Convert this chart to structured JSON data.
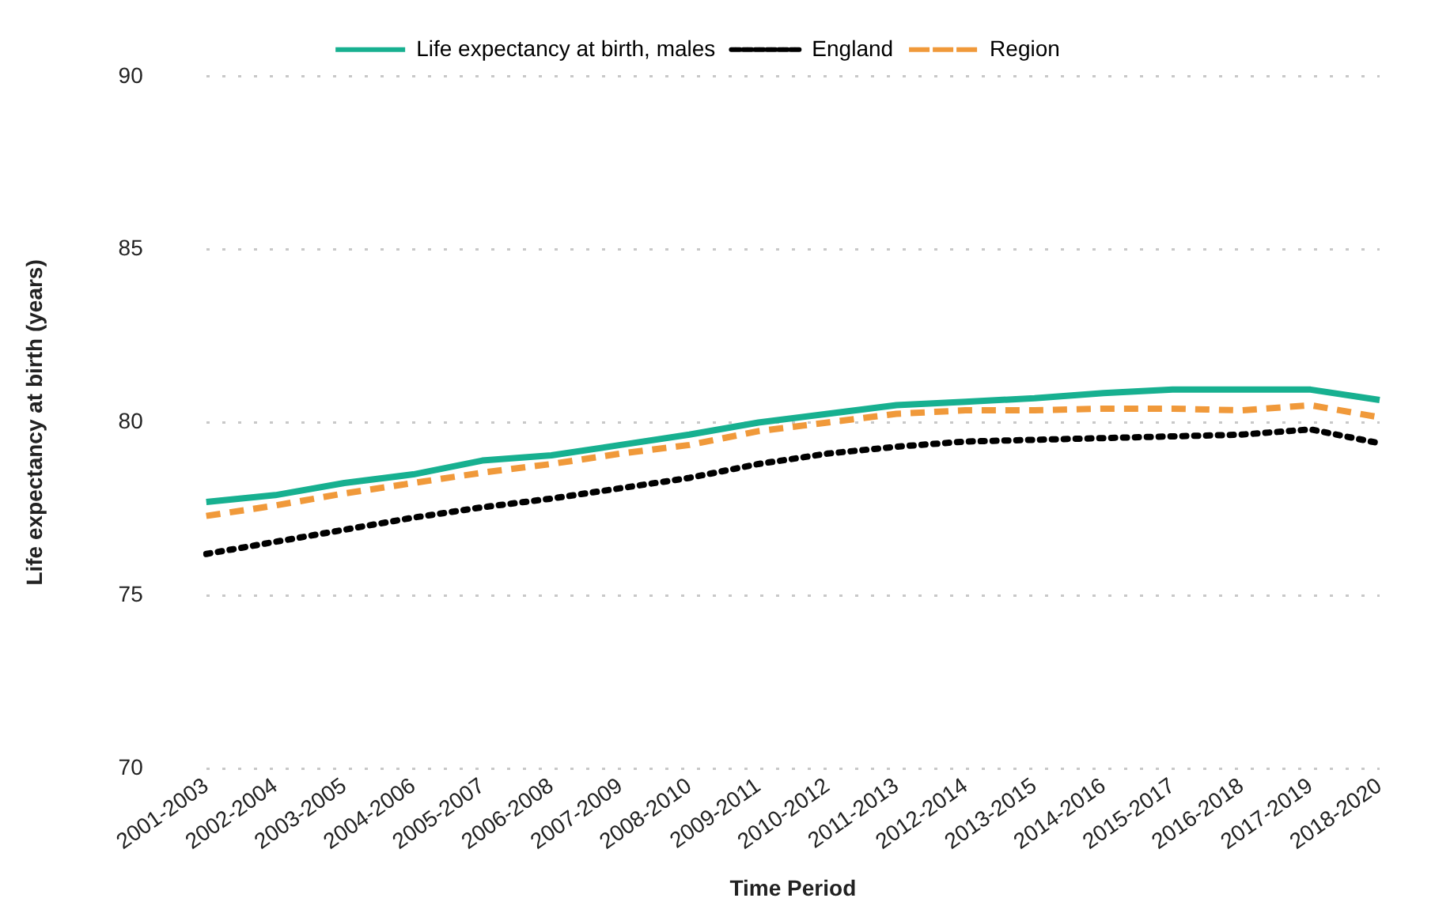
{
  "chart_data": {
    "type": "line",
    "xlabel": "Time Period",
    "ylabel": "Life expectancy at birth (years)",
    "categories": [
      "2001-2003",
      "2002-2004",
      "2003-2005",
      "2004-2006",
      "2005-2007",
      "2006-2008",
      "2007-2009",
      "2008-2010",
      "2009-2011",
      "2010-2012",
      "2011-2013",
      "2012-2014",
      "2013-2015",
      "2014-2016",
      "2015-2017",
      "2016-2018",
      "2017-2019",
      "2018-2020"
    ],
    "series": [
      {
        "name": "Life expectancy at birth, males",
        "color": "#17b090",
        "line_style": "solid",
        "values": [
          77.7,
          77.9,
          78.25,
          78.5,
          78.9,
          79.05,
          79.35,
          79.65,
          80.0,
          80.25,
          80.5,
          80.6,
          80.7,
          80.85,
          80.95,
          80.95,
          80.95,
          80.65
        ]
      },
      {
        "name": "England",
        "color": "#000000",
        "line_style": "dotted",
        "values": [
          76.2,
          76.55,
          76.9,
          77.25,
          77.55,
          77.8,
          78.1,
          78.4,
          78.8,
          79.1,
          79.3,
          79.45,
          79.5,
          79.55,
          79.6,
          79.65,
          79.8,
          79.4
        ]
      },
      {
        "name": "Region",
        "color": "#f0993a",
        "line_style": "dashed",
        "values": [
          77.3,
          77.6,
          77.95,
          78.25,
          78.55,
          78.8,
          79.1,
          79.35,
          79.75,
          80.0,
          80.25,
          80.35,
          80.35,
          80.4,
          80.4,
          80.35,
          80.5,
          80.15
        ]
      }
    ],
    "ylim": [
      70,
      90
    ],
    "yticks": [
      70,
      75,
      80,
      85,
      90
    ],
    "grid": "y",
    "legend": "top",
    "marker": "none"
  }
}
